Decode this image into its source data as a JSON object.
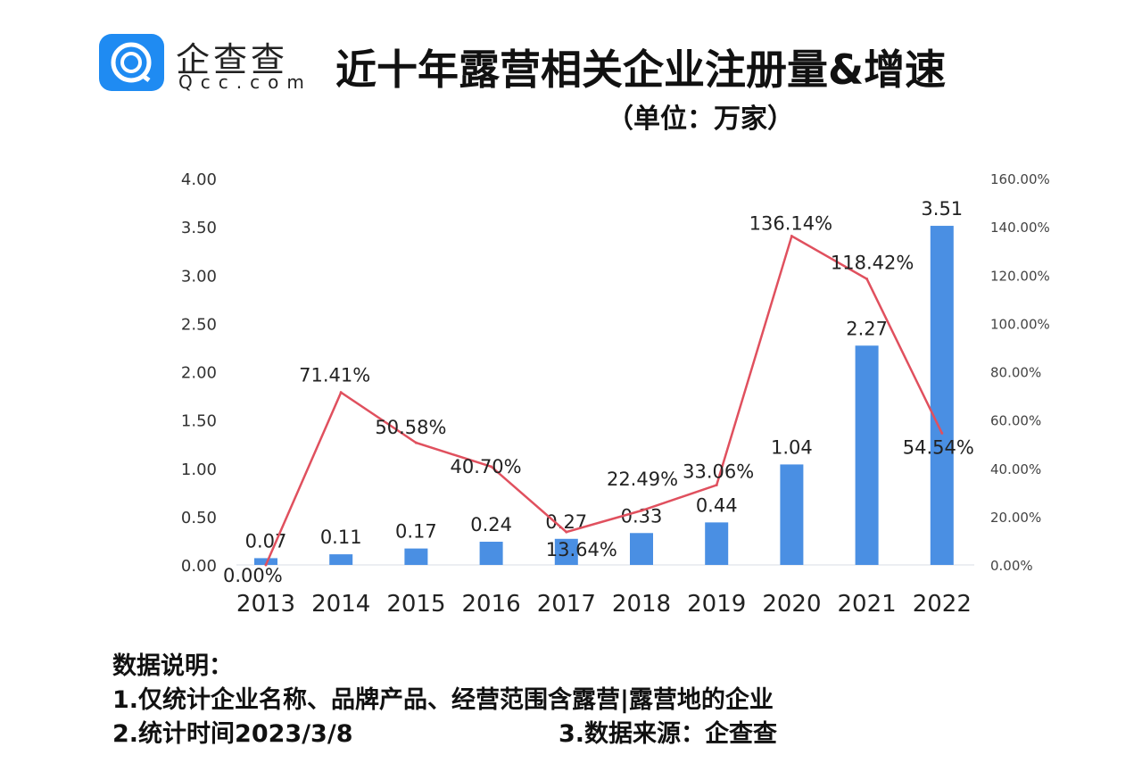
{
  "header": {
    "brand": "企查查",
    "domain": "Qcc.com",
    "title": "近十年露营相关企业注册量&增速",
    "unit": "（单位：万家）"
  },
  "chart_data": {
    "type": "bar+line",
    "title": "近十年露营相关企业注册量&增速",
    "categories": [
      "2013",
      "2014",
      "2015",
      "2016",
      "2017",
      "2018",
      "2019",
      "2020",
      "2021",
      "2022"
    ],
    "series": [
      {
        "name": "注册量(万家)",
        "type": "bar",
        "axis": "left",
        "color": "#4a8fe3",
        "values": [
          0.07,
          0.11,
          0.17,
          0.24,
          0.27,
          0.33,
          0.44,
          1.04,
          2.27,
          3.51
        ],
        "labels": [
          "0.07",
          "0.11",
          "0.17",
          "0.24",
          "0.27",
          "0.33",
          "0.44",
          "1.04",
          "2.27",
          "3.51"
        ]
      },
      {
        "name": "增速",
        "type": "line",
        "axis": "right",
        "color": "#e0505e",
        "values": [
          0,
          71.41,
          50.58,
          40.7,
          13.64,
          22.49,
          33.06,
          136.14,
          118.42,
          54.54
        ],
        "labels": [
          "0.00%",
          "71.41%",
          "50.58%",
          "40.70%",
          "13.64%",
          "22.49%",
          "33.06%",
          "136.14%",
          "118.42%",
          "54.54%"
        ]
      }
    ],
    "ylim": [
      0,
      4
    ],
    "y2lim": [
      0,
      160
    ],
    "yticks": [
      "0.00",
      "0.50",
      "1.00",
      "1.50",
      "2.00",
      "2.50",
      "3.00",
      "3.50",
      "4.00"
    ],
    "y2ticks": [
      "0.00%",
      "20.00%",
      "40.00%",
      "60.00%",
      "80.00%",
      "100.00%",
      "120.00%",
      "140.00%",
      "160.00%"
    ],
    "grid": false
  },
  "notes": {
    "heading": "数据说明：",
    "line1": "1.仅统计企业名称、品牌产品、经营范围含露营|露营地的企业",
    "line2": "2.统计时间2023/3/8",
    "source": "3.数据来源：企查查"
  }
}
